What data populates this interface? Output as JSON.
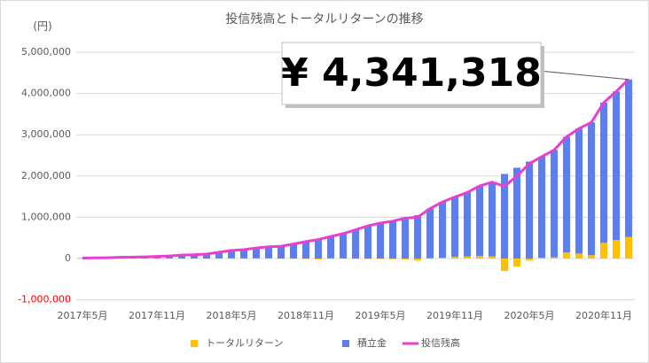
{
  "chart_data": {
    "type": "bar_line",
    "title": "投信残高とトータルリターンの推移",
    "y_unit_label": "(円)",
    "annotation": "¥ 4,341,318",
    "categories": [
      "2017年5月",
      null,
      null,
      null,
      null,
      null,
      "2017年11月",
      null,
      null,
      null,
      null,
      null,
      "2018年5月",
      null,
      null,
      null,
      null,
      null,
      "2018年11月",
      null,
      null,
      null,
      null,
      null,
      "2019年5月",
      null,
      null,
      null,
      null,
      null,
      "2019年11月",
      null,
      null,
      null,
      null,
      null,
      "2020年5月",
      null,
      null,
      null,
      null,
      null,
      "2020年11月",
      null,
      null
    ],
    "series": [
      {
        "name": "トータルリターン",
        "type": "bar",
        "color": "#ffc000",
        "values": [
          0,
          0,
          0,
          0,
          0,
          1000,
          2000,
          3000,
          2000,
          1000,
          -2000,
          3000,
          5000,
          4000,
          6000,
          5000,
          -3000,
          2000,
          -10000,
          -20000,
          5000,
          3000,
          -5000,
          -8000,
          -10000,
          -15000,
          -20000,
          -50000,
          10000,
          20000,
          40000,
          50000,
          60000,
          50000,
          -300000,
          -200000,
          -50000,
          20000,
          30000,
          150000,
          120000,
          80000,
          380000,
          450000,
          520000
        ]
      },
      {
        "name": "積立金",
        "type": "bar",
        "color": "#5b7ff0",
        "values": [
          10000,
          15000,
          20000,
          30000,
          35000,
          40000,
          50000,
          60000,
          80000,
          90000,
          110000,
          150000,
          190000,
          210000,
          250000,
          280000,
          300000,
          350000,
          420000,
          480000,
          530000,
          600000,
          700000,
          800000,
          870000,
          920000,
          1000000,
          1050000,
          1200000,
          1350000,
          1450000,
          1550000,
          1700000,
          1800000,
          2050000,
          2200000,
          2350000,
          2450000,
          2600000,
          2800000,
          3030000,
          3220000,
          3400000,
          3600000,
          3821318
        ]
      },
      {
        "name": "投信残高",
        "type": "line",
        "color": "#e83fd0",
        "values": [
          10000,
          15000,
          20000,
          30000,
          35000,
          41000,
          52000,
          63000,
          82000,
          91000,
          108000,
          153000,
          195000,
          214000,
          256000,
          285000,
          297000,
          352000,
          410000,
          460000,
          535000,
          603000,
          695000,
          792000,
          860000,
          905000,
          980000,
          1000000,
          1210000,
          1370000,
          1490000,
          1600000,
          1760000,
          1850000,
          1750000,
          2000000,
          2300000,
          2470000,
          2630000,
          2950000,
          3150000,
          3300000,
          3780000,
          4050000,
          4341318
        ]
      }
    ],
    "ylim": [
      -1000000,
      5000000
    ],
    "yticks": [
      {
        "value": -1000000,
        "label": "-1,000,000"
      },
      0,
      {
        "value": 1000000,
        "label": "1,000,000"
      },
      {
        "value": 2000000,
        "label": "2,000,000"
      },
      {
        "value": 3000000,
        "label": "3,000,000"
      },
      {
        "value": 4000000,
        "label": "4,000,000"
      },
      {
        "value": 5000000,
        "label": "5,000,000"
      }
    ],
    "negative_tick_color": "#ff0000",
    "grid": true,
    "legend": "bottom"
  }
}
